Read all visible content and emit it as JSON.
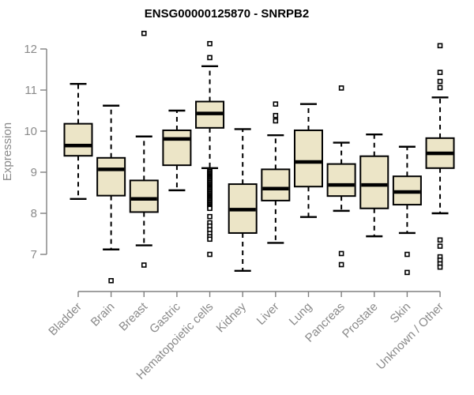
{
  "chart_data": {
    "type": "boxplot",
    "title": "ENSG00000125870 - SNRPB2",
    "ylabel": "Expression",
    "xlabel": "",
    "yticks": [
      7,
      8,
      9,
      10,
      11,
      12
    ],
    "ylim": [
      7,
      12
    ],
    "grid": false,
    "legend": "none",
    "axis_color": "#808080",
    "tick_label_color": "#8a8a8a",
    "title_color": "#000000",
    "box_fill": "#ece5c7",
    "box_stroke": "#000000",
    "categories": [
      "Bladder",
      "Brain",
      "Breast",
      "Gastric",
      "Hematopoietic cells",
      "Kidney",
      "Liver",
      "Lung",
      "Pancreas",
      "Prostate",
      "Skin",
      "Unknown / Other"
    ],
    "series": [
      {
        "category": "Bladder",
        "whisker_low": 8.35,
        "q1": 9.4,
        "median": 9.65,
        "q3": 10.18,
        "whisker_high": 11.15,
        "outliers": []
      },
      {
        "category": "Brain",
        "whisker_low": 7.12,
        "q1": 8.43,
        "median": 9.07,
        "q3": 9.35,
        "whisker_high": 10.62,
        "outliers": [
          6.36
        ]
      },
      {
        "category": "Breast",
        "whisker_low": 7.22,
        "q1": 8.03,
        "median": 8.35,
        "q3": 8.8,
        "whisker_high": 9.87,
        "outliers": [
          12.38,
          6.74
        ]
      },
      {
        "category": "Gastric",
        "whisker_low": 8.56,
        "q1": 9.17,
        "median": 9.81,
        "q3": 10.02,
        "whisker_high": 10.5,
        "outliers": []
      },
      {
        "category": "Hematopoietic cells",
        "whisker_low": 9.1,
        "q1": 10.08,
        "median": 10.43,
        "q3": 10.72,
        "whisker_high": 11.58,
        "outliers": [
          12.13,
          11.79,
          9.05,
          9.02,
          8.99,
          8.96,
          8.93,
          8.9,
          8.87,
          8.84,
          8.81,
          8.78,
          8.75,
          8.72,
          8.69,
          8.66,
          8.63,
          8.6,
          8.57,
          8.54,
          8.51,
          8.48,
          8.45,
          8.42,
          8.39,
          8.36,
          8.33,
          8.3,
          8.27,
          8.24,
          8.21,
          8.18,
          8.15,
          8.12,
          7.92,
          7.77,
          7.69,
          7.6,
          7.51,
          7.43,
          7.37,
          7.0
        ]
      },
      {
        "category": "Kidney",
        "whisker_low": 6.6,
        "q1": 7.52,
        "median": 8.09,
        "q3": 8.71,
        "whisker_high": 10.05,
        "outliers": []
      },
      {
        "category": "Liver",
        "whisker_low": 7.28,
        "q1": 8.31,
        "median": 8.6,
        "q3": 9.07,
        "whisker_high": 9.9,
        "outliers": [
          10.66,
          10.38,
          10.25
        ]
      },
      {
        "category": "Lung",
        "whisker_low": 7.91,
        "q1": 8.65,
        "median": 9.25,
        "q3": 10.02,
        "whisker_high": 10.66,
        "outliers": []
      },
      {
        "category": "Pancreas",
        "whisker_low": 8.06,
        "q1": 8.42,
        "median": 8.69,
        "q3": 9.2,
        "whisker_high": 9.72,
        "outliers": [
          11.05,
          7.02,
          6.75
        ]
      },
      {
        "category": "Prostate",
        "whisker_low": 7.44,
        "q1": 8.12,
        "median": 8.69,
        "q3": 9.39,
        "whisker_high": 9.92,
        "outliers": []
      },
      {
        "category": "Skin",
        "whisker_low": 7.52,
        "q1": 8.21,
        "median": 8.52,
        "q3": 8.9,
        "whisker_high": 9.62,
        "outliers": [
          7.0,
          6.56
        ]
      },
      {
        "category": "Unknown / Other",
        "whisker_low": 8.0,
        "q1": 9.1,
        "median": 9.46,
        "q3": 9.83,
        "whisker_high": 10.82,
        "outliers": [
          12.08,
          11.43,
          11.21,
          11.06,
          7.35,
          7.2,
          6.94,
          6.86,
          6.77,
          6.69
        ]
      }
    ]
  }
}
